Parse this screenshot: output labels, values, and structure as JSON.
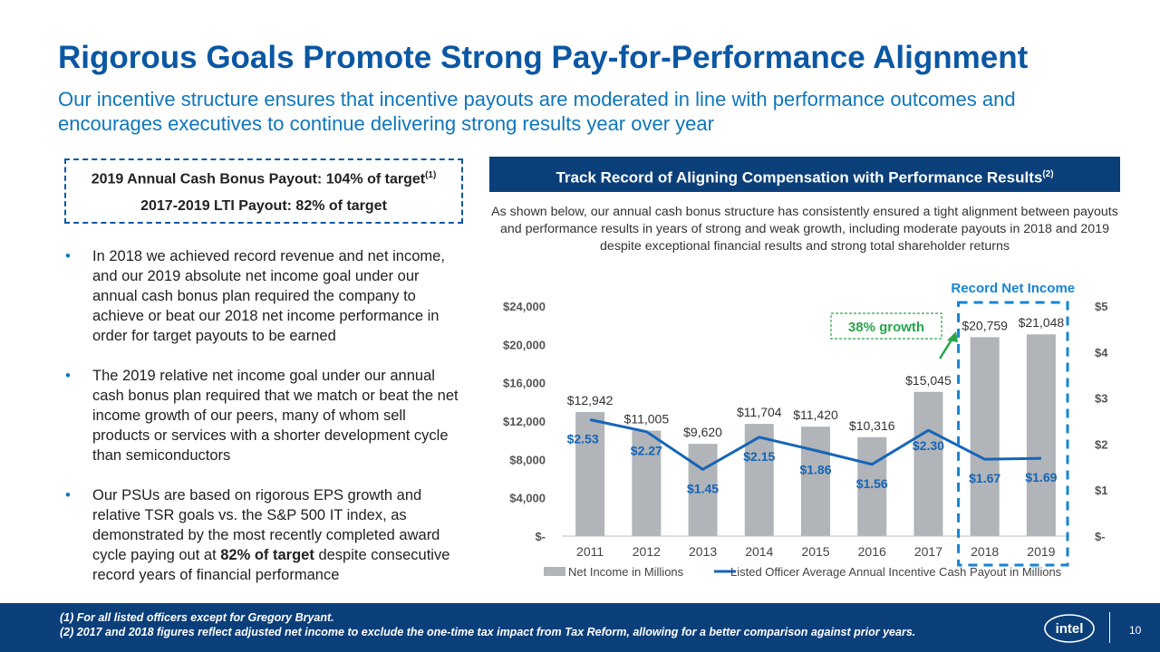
{
  "header": {
    "title": "Rigorous Goals Promote Strong Pay-for-Performance Alignment",
    "subtitle": "Our incentive structure ensures that incentive payouts are moderated in line with performance outcomes and encourages executives to continue delivering strong results year over year"
  },
  "callout": {
    "line1": "2019 Annual Cash Bonus Payout: 104% of target",
    "line1_sup": "(1)",
    "line2": "2017-2019 LTI Payout: 82% of target"
  },
  "bullets": {
    "b1": "In 2018 we achieved record revenue and net income, and our 2019 absolute net income goal under our annual cash bonus plan required the company to achieve or beat our 2018 net income performance in order for target payouts to be earned",
    "b2": "The 2019 relative net income goal under our annual cash bonus plan required that we match or beat the net income growth of our peers, many of whom sell products or services with a shorter development cycle than semiconductors",
    "b3_pre": "Our PSUs are based on rigorous EPS growth and relative TSR goals vs. the S&P 500 IT index, as demonstrated by the most recently completed award cycle paying out at ",
    "b3_bold": "82% of target",
    "b3_post": " despite consecutive record years of financial performance"
  },
  "panel": {
    "header": "Track Record of Aligning Compensation with Performance Results",
    "header_sup": "(2)",
    "description": "As shown below, our annual cash bonus structure has consistently ensured a tight alignment between payouts and performance results in years of strong and weak growth, including moderate payouts in 2018 and 2019 despite exceptional financial results and strong total shareholder returns"
  },
  "chart_data": {
    "type": "bar",
    "categories": [
      "2011",
      "2012",
      "2013",
      "2014",
      "2015",
      "2016",
      "2017",
      "2018",
      "2019"
    ],
    "series": [
      {
        "name": "Net Income in Millions",
        "type": "bar",
        "axis": "left",
        "values": [
          12942,
          11005,
          9620,
          11704,
          11420,
          10316,
          15045,
          20759,
          21048
        ],
        "labels": [
          "$12,942",
          "$11,005",
          "$9,620",
          "$11,704",
          "$11,420",
          "$10,316",
          "$15,045",
          "$20,759",
          "$21,048"
        ]
      },
      {
        "name": "Listed Officer Average Annual Incentive Cash Payout in Millions",
        "type": "line",
        "axis": "right",
        "values": [
          2.53,
          2.27,
          1.45,
          2.15,
          1.86,
          1.56,
          2.3,
          1.67,
          1.69
        ],
        "labels": [
          "$2.53",
          "$2.27",
          "$1.45",
          "$2.15",
          "$1.86",
          "$1.56",
          "$2.30",
          "$1.67",
          "$1.69"
        ]
      }
    ],
    "y_left": {
      "min": 0,
      "max": 24000,
      "ticks": [
        "$-",
        "$4,000",
        "$8,000",
        "$12,000",
        "$16,000",
        "$20,000",
        "$24,000"
      ]
    },
    "y_right": {
      "min": 0,
      "max": 5,
      "ticks": [
        "$-",
        "$1",
        "$2",
        "$3",
        "$4",
        "$5"
      ]
    },
    "annotations": {
      "record": "Record Net Income",
      "growth": "38% growth"
    },
    "legend_position": "bottom",
    "colors": {
      "bar": "#b1b4b8",
      "line": "#1565b8",
      "highlight": "#1584d2",
      "growth": "#28a54a"
    }
  },
  "footnotes": {
    "fn1": "(1)  For all listed officers except for Gregory Bryant.",
    "fn2": "(2)  2017 and 2018 figures reflect adjusted net income to exclude the one-time tax impact from Tax Reform, allowing for a better comparison against prior years."
  },
  "footer": {
    "logo_text": "intel",
    "page_number": "10"
  }
}
